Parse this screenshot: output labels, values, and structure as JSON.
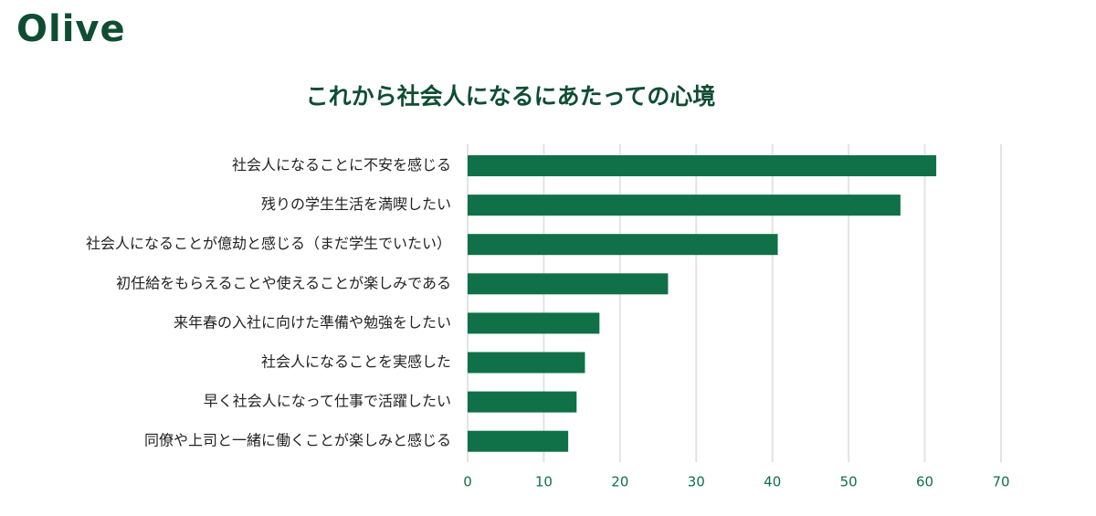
{
  "brand": {
    "logo_text": "Olive",
    "color": "#0f4d33"
  },
  "chart_data": {
    "type": "bar",
    "orientation": "horizontal",
    "title": "これから社会人になるにあたっての心境",
    "xlabel": "",
    "ylabel": "",
    "categories": [
      "社会人になることに不安を感じる",
      "残りの学生生活を満喫したい",
      "社会人になることが億劫と感じる（まだ学生でいたい）",
      "初任給をもらえることや使えることが楽しみである",
      "来年春の入社に向けた準備や勉強をしたい",
      "社会人になることを実感した",
      "早く社会人になって仕事で活躍したい",
      "同僚や上司と一緒に働くことが楽しみと感じる"
    ],
    "values": [
      61.5,
      56.8,
      40.7,
      26.3,
      17.3,
      15.4,
      14.3,
      13.2
    ],
    "xlim": [
      0,
      70
    ],
    "xticks": [
      0,
      10,
      20,
      30,
      40,
      50,
      60,
      70
    ],
    "grid": true,
    "bar_color": "#107048",
    "tick_color": "#107048",
    "label_color": "#222222"
  }
}
